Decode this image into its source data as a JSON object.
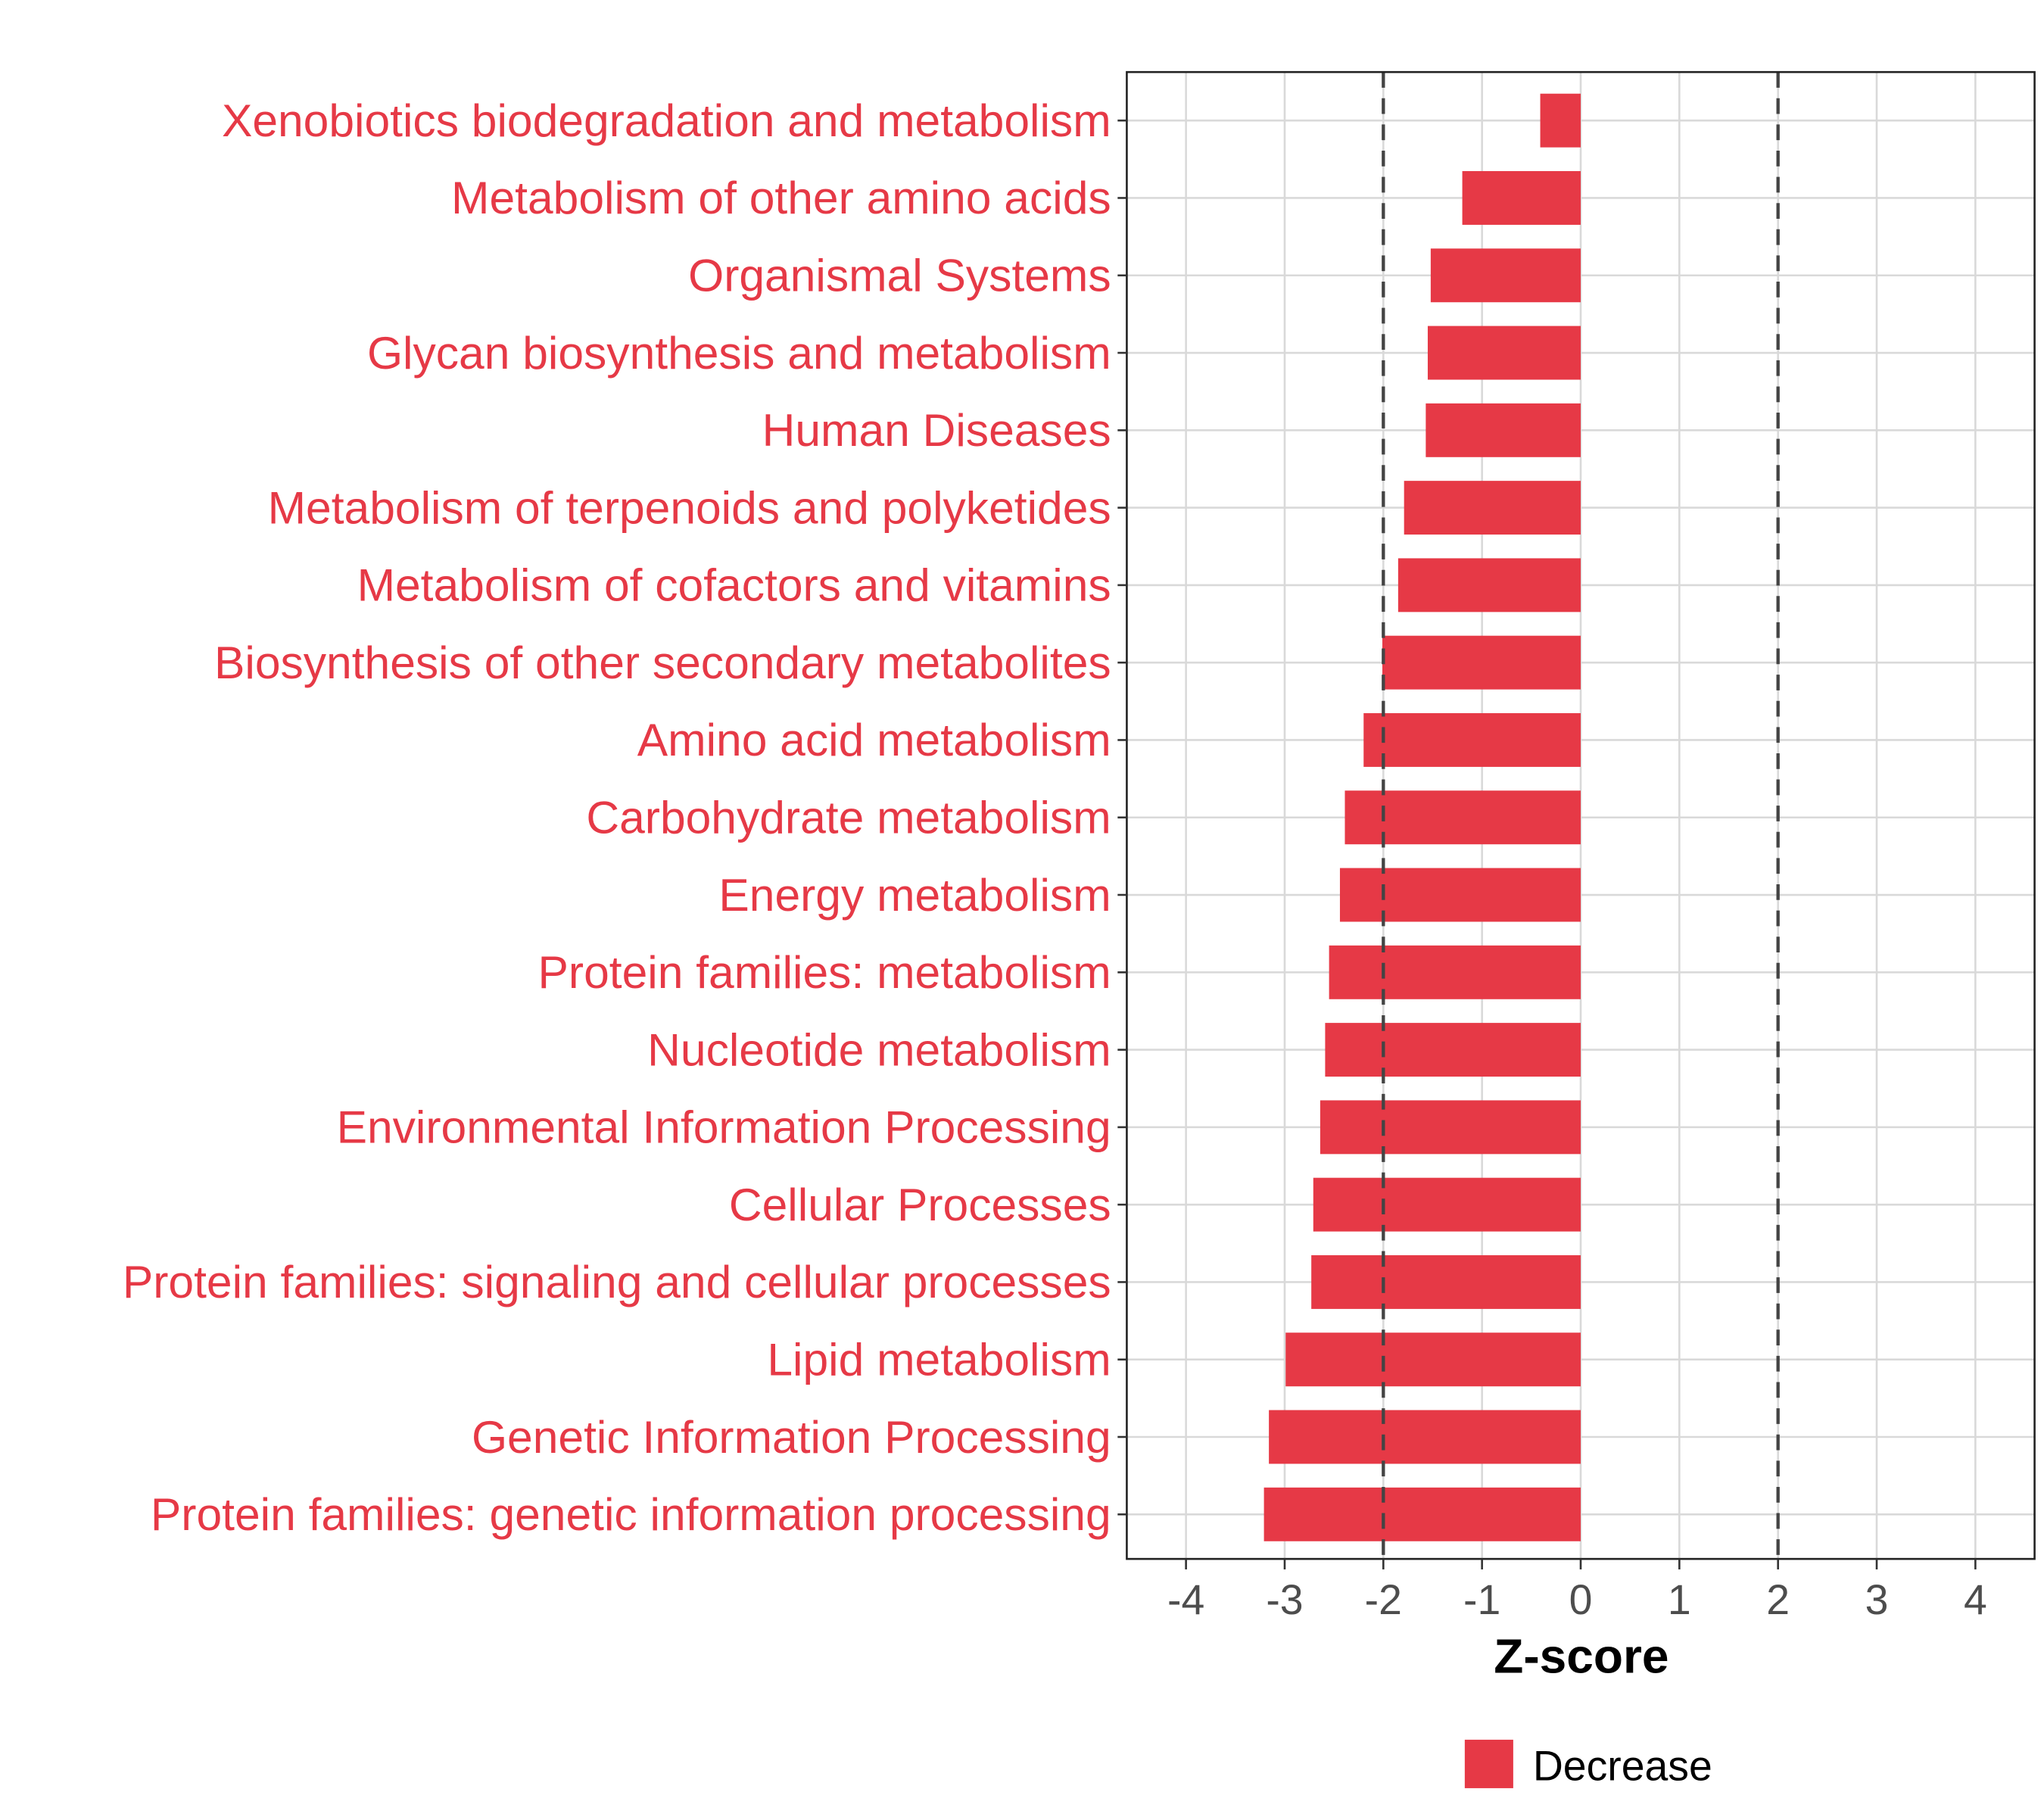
{
  "chart_data": {
    "type": "bar",
    "orientation": "horizontal",
    "title": "",
    "xlabel": "Z-score",
    "ylabel": "",
    "xlim": [
      -4.6,
      4.6
    ],
    "xticks": [
      -4,
      -3,
      -2,
      -1,
      0,
      1,
      2,
      3,
      4
    ],
    "xtick_labels": [
      "-4",
      "-3",
      "-2",
      "-1",
      "0",
      "1",
      "2",
      "3",
      "4"
    ],
    "reference_lines": [
      -2,
      2
    ],
    "grid": true,
    "categories": [
      "Xenobiotics biodegradation and metabolism",
      "Metabolism of other amino acids",
      "Organismal Systems",
      "Glycan biosynthesis and metabolism",
      "Human Diseases",
      "Metabolism of terpenoids and polyketides",
      "Metabolism of cofactors and vitamins",
      "Biosynthesis of other secondary metabolites",
      "Amino acid metabolism",
      "Carbohydrate metabolism",
      "Energy metabolism",
      "Protein families: metabolism",
      "Nucleotide metabolism",
      "Environmental Information Processing",
      "Cellular Processes",
      "Protein families: signaling and cellular processes",
      "Lipid metabolism",
      "Genetic Information Processing",
      "Protein families: genetic information processing"
    ],
    "values": [
      -0.41,
      -1.2,
      -1.52,
      -1.55,
      -1.57,
      -1.79,
      -1.85,
      -2.01,
      -2.2,
      -2.39,
      -2.44,
      -2.55,
      -2.59,
      -2.64,
      -2.71,
      -2.73,
      -2.99,
      -3.16,
      -3.21
    ],
    "legend": {
      "position": "bottom",
      "entries": [
        {
          "label": "Decrease",
          "color": "#E63946"
        }
      ]
    },
    "colors": {
      "bar": "#E63946",
      "label": "#E63946",
      "grid": "#D9D9D9",
      "refline": "#444444",
      "tick_text": "#4D4D4D"
    }
  }
}
